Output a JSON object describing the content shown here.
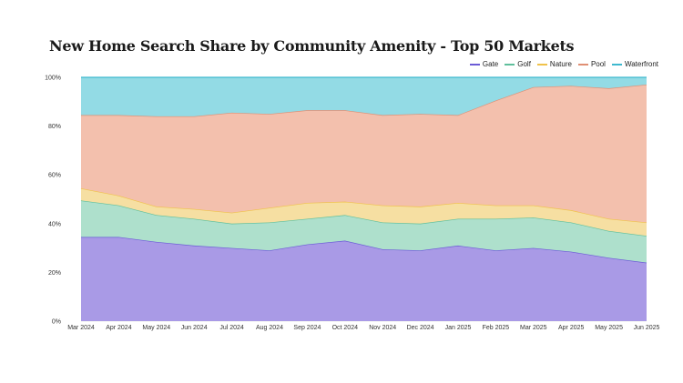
{
  "chart_data": {
    "type": "area",
    "stacked": true,
    "title": "New Home Search Share by Community Amenity - Top 50 Markets",
    "x": [
      "Mar 2024",
      "Apr 2024",
      "May 2024",
      "Jun 2024",
      "Jul 2024",
      "Aug 2024",
      "Sep 2024",
      "Oct 2024",
      "Nov 2024",
      "Dec 2024",
      "Jan 2025",
      "Feb 2025",
      "Mar 2025",
      "Apr 2025",
      "May 2025",
      "Jun 2025"
    ],
    "yticks": [
      "0%",
      "20%",
      "40%",
      "60%",
      "80%",
      "100%"
    ],
    "ylim": [
      0,
      100
    ],
    "legend_position": "top-right",
    "series": [
      {
        "name": "Gate",
        "color": "#6b5bd6",
        "fill": "#a99ae6",
        "values": [
          34.5,
          34.5,
          32.5,
          31,
          30,
          29,
          31.5,
          33,
          29.5,
          29,
          31,
          29,
          30,
          28.5,
          26,
          24
        ]
      },
      {
        "name": "Golf",
        "color": "#5fbf9c",
        "fill": "#aee0cc",
        "values": [
          15,
          13,
          11,
          11,
          10,
          11.5,
          10.5,
          10.5,
          11,
          11,
          11,
          13,
          12.5,
          12,
          11,
          11
        ]
      },
      {
        "name": "Nature",
        "color": "#f0c24a",
        "fill": "#f6dfa2",
        "values": [
          5,
          4,
          3.5,
          4,
          4.5,
          6,
          6.5,
          5.5,
          7,
          7,
          6.5,
          5.5,
          5,
          5,
          5,
          5.5
        ]
      },
      {
        "name": "Pool",
        "color": "#e08f74",
        "fill": "#f3c0ad",
        "values": [
          30,
          33,
          37,
          38,
          41,
          38.5,
          38,
          37.5,
          37,
          38,
          36,
          43,
          48.5,
          51,
          53.5,
          56.5
        ]
      },
      {
        "name": "Waterfront",
        "color": "#3fb9cf",
        "fill": "#93dbe5",
        "values": [
          15.5,
          15.5,
          16,
          16,
          14.5,
          15,
          13.5,
          13.5,
          15.5,
          15,
          15.5,
          9.5,
          4,
          3.5,
          4.5,
          3
        ]
      }
    ]
  }
}
